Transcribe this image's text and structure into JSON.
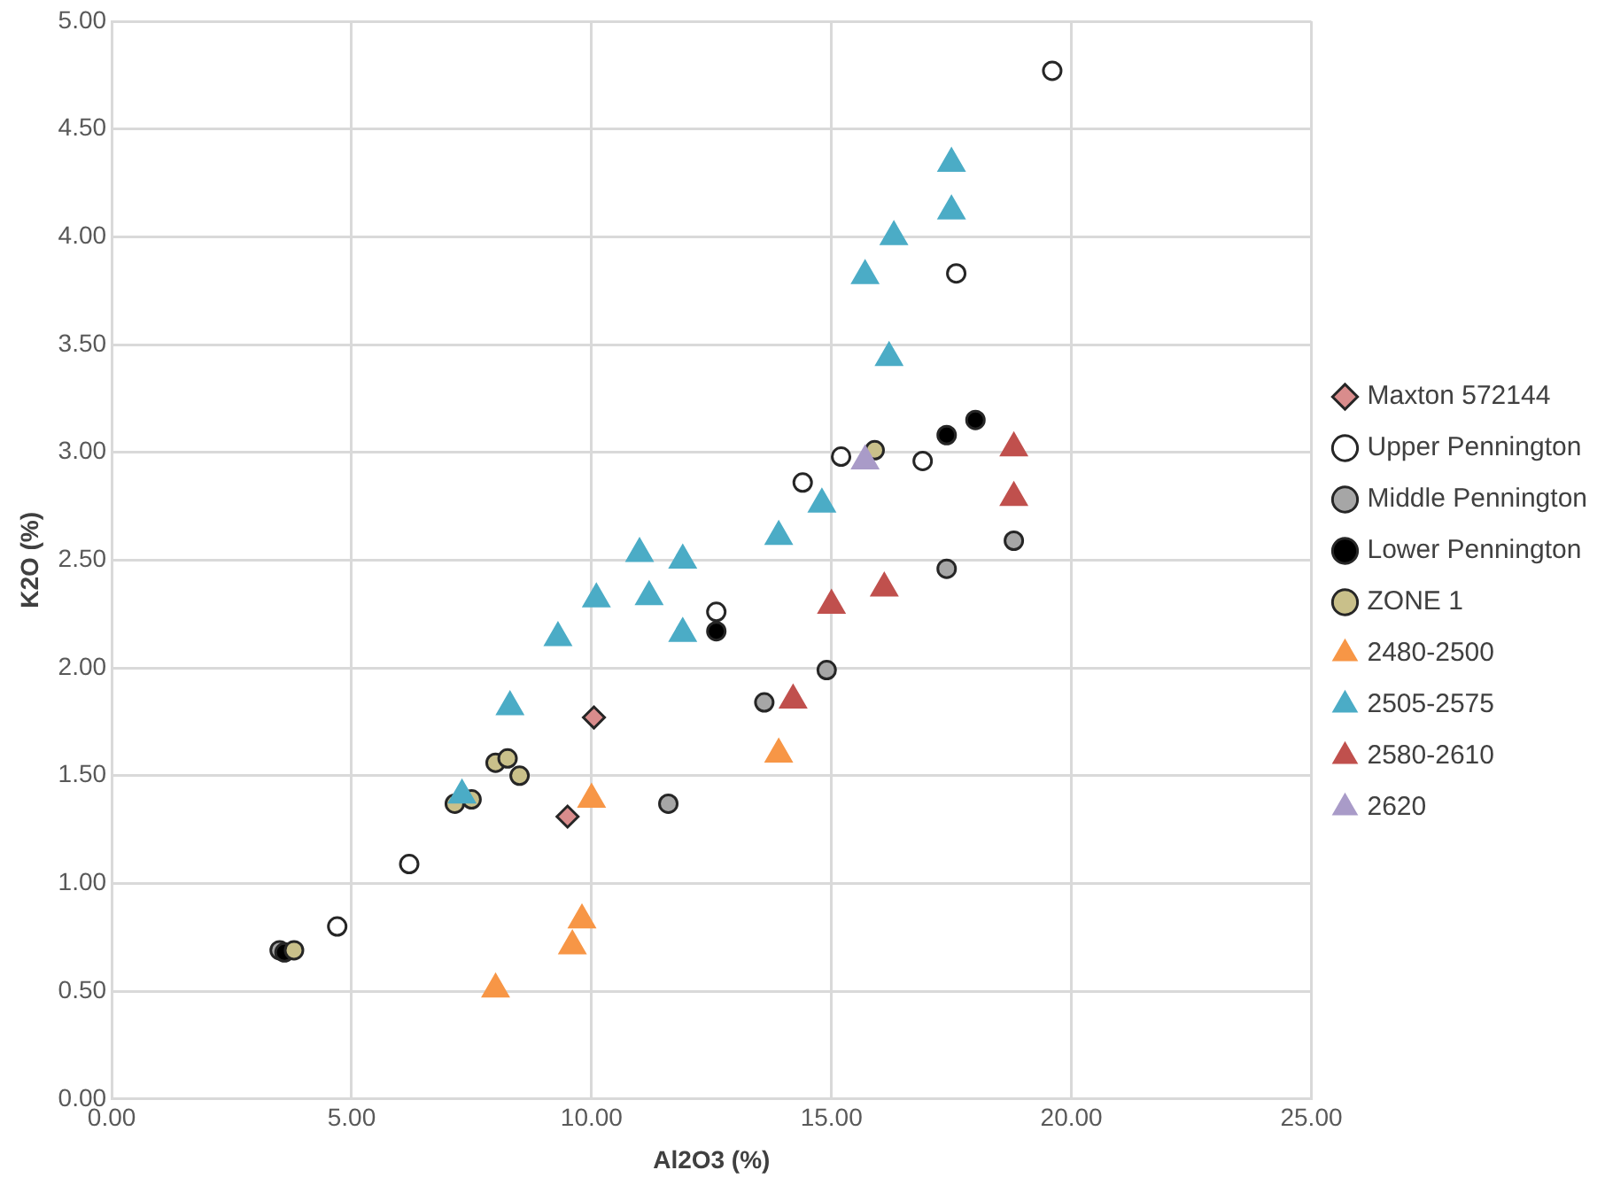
{
  "chart_data": {
    "type": "scatter",
    "xlabel": "Al2O3 (%)",
    "ylabel": "K2O (%)",
    "grid": true,
    "legend": "right",
    "xlim": [
      0,
      25
    ],
    "xticks": [
      {
        "value": 0,
        "label": "0.00"
      },
      {
        "value": 5,
        "label": "5.00"
      },
      {
        "value": 10,
        "label": "10.00"
      },
      {
        "value": 15,
        "label": "15.00"
      },
      {
        "value": 20,
        "label": "20.00"
      },
      {
        "value": 25,
        "label": "25.00"
      }
    ],
    "ylim": [
      0,
      5
    ],
    "yticks": [
      {
        "value": 0,
        "label": "0.00"
      },
      {
        "value": 0.5,
        "label": "0.50"
      },
      {
        "value": 1,
        "label": "1.00"
      },
      {
        "value": 1.5,
        "label": "1.50"
      },
      {
        "value": 2,
        "label": "2.00"
      },
      {
        "value": 2.5,
        "label": "2.50"
      },
      {
        "value": 3,
        "label": "3.00"
      },
      {
        "value": 3.5,
        "label": "3.50"
      },
      {
        "value": 4,
        "label": "4.00"
      },
      {
        "value": 4.5,
        "label": "4.50"
      },
      {
        "value": 5,
        "label": "5.00"
      }
    ],
    "series": [
      {
        "name": "Maxton 572144",
        "color": "#d98c8c",
        "marker": "diamond",
        "x": [
          10.05,
          9.5
        ],
        "values": [
          1.77,
          1.31
        ]
      },
      {
        "name": "Upper Pennington",
        "color": "#ffffff",
        "marker": "circle",
        "x": [
          19.6,
          17.6,
          15.2,
          16.9,
          14.4,
          12.6,
          6.2,
          4.7
        ],
        "values": [
          4.77,
          3.83,
          2.98,
          2.96,
          2.86,
          2.26,
          1.09,
          0.8
        ]
      },
      {
        "name": "Middle Pennington",
        "color": "#a6a6a6",
        "marker": "circle",
        "x": [
          18.8,
          17.4,
          14.9,
          13.6,
          11.6,
          3.5
        ],
        "values": [
          2.59,
          2.46,
          1.99,
          1.84,
          1.37,
          0.69
        ]
      },
      {
        "name": "Lower Pennington",
        "color": "#000000",
        "marker": "circle",
        "x": [
          18.0,
          17.4,
          12.6,
          3.6
        ],
        "values": [
          3.15,
          3.08,
          2.17,
          0.68
        ]
      },
      {
        "name": "ZONE 1",
        "color": "#c9c08a",
        "marker": "circle",
        "x": [
          15.9,
          8.0,
          8.25,
          8.5,
          7.15,
          7.5,
          3.8
        ],
        "values": [
          3.01,
          1.56,
          1.58,
          1.5,
          1.37,
          1.39,
          0.69
        ]
      },
      {
        "name": "2480-2500",
        "color": "#f79646",
        "marker": "triangle",
        "x": [
          10.0,
          9.8,
          9.6,
          8.0,
          13.9
        ],
        "values": [
          1.39,
          0.83,
          0.71,
          0.51,
          1.6
        ]
      },
      {
        "name": "2505-2575",
        "color": "#4bacc6",
        "marker": "triangle",
        "x": [
          17.5,
          17.5,
          16.3,
          15.7,
          16.2,
          14.8,
          13.9,
          11.9,
          11.0,
          11.2,
          10.1,
          11.9,
          9.3,
          8.3,
          7.3
        ],
        "values": [
          4.34,
          4.12,
          4.0,
          3.82,
          3.44,
          2.76,
          2.61,
          2.5,
          2.53,
          2.33,
          2.32,
          2.16,
          2.14,
          1.82,
          1.41
        ]
      },
      {
        "name": "2580-2610",
        "color": "#c0504d",
        "marker": "triangle",
        "x": [
          18.8,
          18.8,
          16.1,
          15.0,
          14.2
        ],
        "values": [
          3.02,
          2.79,
          2.37,
          2.29,
          1.85
        ]
      },
      {
        "name": "2620",
        "color": "#a99bc8",
        "marker": "triangle",
        "x": [
          15.7
        ],
        "values": [
          2.96
        ]
      }
    ]
  }
}
